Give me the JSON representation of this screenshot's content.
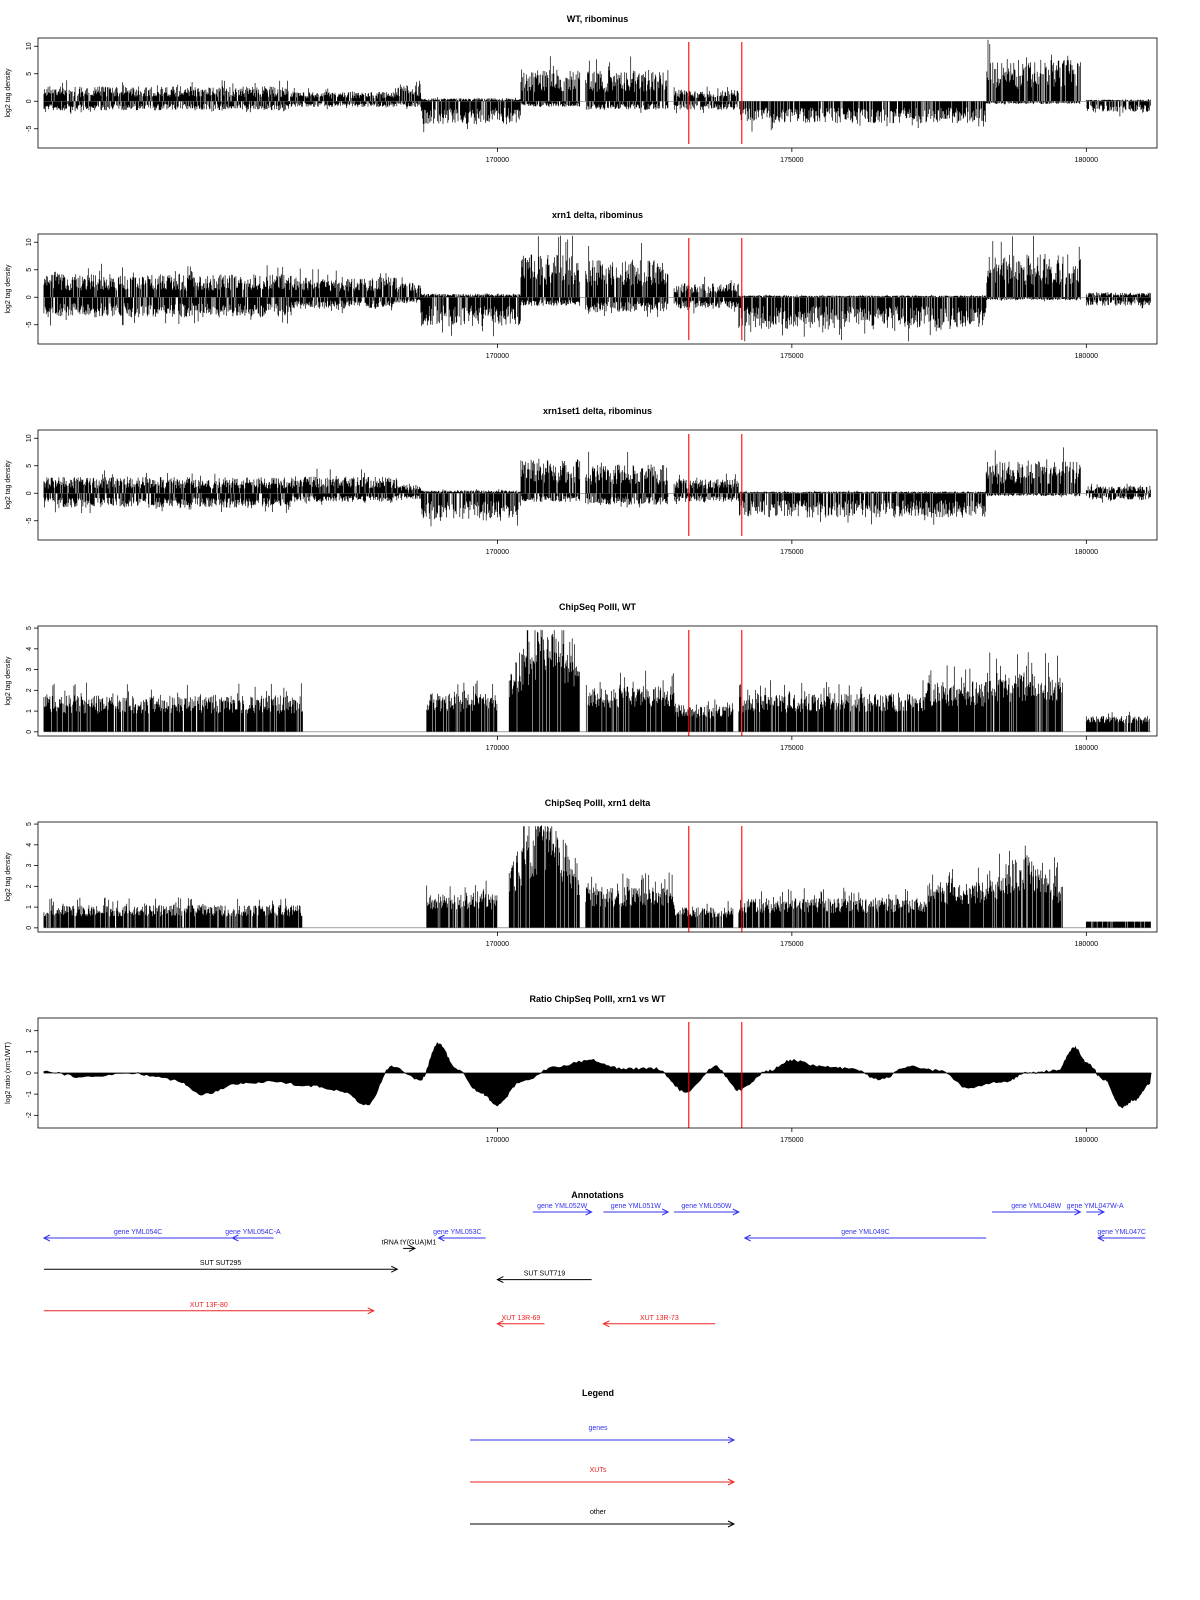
{
  "chart_data": [
    {
      "type": "bar",
      "title": "WT, ribominus",
      "xlabel": "",
      "ylabel": "log2 tag density",
      "xlim": [
        162200,
        181200
      ],
      "ylim": [
        -8.5,
        11.5
      ],
      "yticks": [
        -5,
        0,
        5,
        10
      ],
      "xticks": [
        170000,
        175000,
        180000
      ],
      "markers": [
        173250,
        174150
      ],
      "profile": "ribo",
      "seed": 11,
      "amp": 1.0,
      "noise": 0.9,
      "segments": [
        {
          "start": 162300,
          "end": 166500,
          "top": 2.6,
          "bottom": -1.6
        },
        {
          "start": 166500,
          "end": 168300,
          "top": 1.6,
          "bottom": -1.0
        },
        {
          "start": 168300,
          "end": 168700,
          "top": 3.0,
          "bottom": -1.0
        },
        {
          "start": 168700,
          "end": 170400,
          "top": 0.5,
          "bottom": -4.0
        },
        {
          "start": 170400,
          "end": 171400,
          "top": 5.5,
          "bottom": -1.0
        },
        {
          "start": 171500,
          "end": 172900,
          "top": 5.5,
          "bottom": -1.5
        },
        {
          "start": 173000,
          "end": 174100,
          "top": 2.0,
          "bottom": -1.5
        },
        {
          "start": 174100,
          "end": 178300,
          "top": 0.2,
          "bottom": -3.8
        },
        {
          "start": 178300,
          "end": 179900,
          "top": 7.5,
          "bottom": -0.5
        },
        {
          "start": 180000,
          "end": 181100,
          "top": 0.3,
          "bottom": -2.0
        }
      ]
    },
    {
      "type": "bar",
      "title": "xrn1 delta, ribominus",
      "xlabel": "",
      "ylabel": "log2 tag density",
      "xlim": [
        162200,
        181200
      ],
      "ylim": [
        -8.5,
        11.5
      ],
      "yticks": [
        -5,
        0,
        5,
        10
      ],
      "xticks": [
        170000,
        175000,
        180000
      ],
      "markers": [
        173250,
        174150
      ],
      "profile": "ribo",
      "seed": 23,
      "amp": 1.0,
      "noise": 0.9,
      "segments": [
        {
          "start": 162300,
          "end": 166500,
          "top": 4.0,
          "bottom": -3.5
        },
        {
          "start": 166500,
          "end": 168300,
          "top": 3.5,
          "bottom": -2.0
        },
        {
          "start": 168300,
          "end": 168700,
          "top": 2.5,
          "bottom": -1.0
        },
        {
          "start": 168700,
          "end": 170400,
          "top": 0.6,
          "bottom": -5.0
        },
        {
          "start": 170400,
          "end": 171400,
          "top": 7.5,
          "bottom": -1.5
        },
        {
          "start": 171500,
          "end": 172900,
          "top": 6.5,
          "bottom": -2.5
        },
        {
          "start": 173000,
          "end": 174100,
          "top": 2.5,
          "bottom": -2.0
        },
        {
          "start": 174100,
          "end": 178300,
          "top": 0.3,
          "bottom": -5.5
        },
        {
          "start": 178300,
          "end": 179900,
          "top": 7.5,
          "bottom": -0.5
        },
        {
          "start": 180000,
          "end": 181100,
          "top": 0.8,
          "bottom": -1.5
        }
      ]
    },
    {
      "type": "bar",
      "title": "xrn1set1 delta, ribominus",
      "xlabel": "",
      "ylabel": "log2 tag density",
      "xlim": [
        162200,
        181200
      ],
      "ylim": [
        -8.5,
        11.5
      ],
      "yticks": [
        -5,
        0,
        5,
        10
      ],
      "xticks": [
        170000,
        175000,
        180000
      ],
      "markers": [
        173250,
        174150
      ],
      "profile": "ribo",
      "seed": 37,
      "amp": 1.0,
      "noise": 0.9,
      "segments": [
        {
          "start": 162300,
          "end": 166500,
          "top": 2.8,
          "bottom": -2.5
        },
        {
          "start": 166500,
          "end": 168300,
          "top": 3.0,
          "bottom": -1.5
        },
        {
          "start": 168300,
          "end": 168700,
          "top": 1.5,
          "bottom": -1.0
        },
        {
          "start": 168700,
          "end": 170400,
          "top": 0.5,
          "bottom": -4.5
        },
        {
          "start": 170400,
          "end": 171400,
          "top": 6.0,
          "bottom": -1.5
        },
        {
          "start": 171500,
          "end": 172900,
          "top": 5.0,
          "bottom": -2.0
        },
        {
          "start": 173000,
          "end": 174100,
          "top": 2.5,
          "bottom": -1.5
        },
        {
          "start": 174100,
          "end": 178300,
          "top": 0.3,
          "bottom": -4.2
        },
        {
          "start": 178300,
          "end": 179900,
          "top": 5.5,
          "bottom": -0.5
        },
        {
          "start": 180000,
          "end": 181100,
          "top": 1.2,
          "bottom": -1.2
        }
      ]
    },
    {
      "type": "bar",
      "title": "ChipSeq PolII, WT",
      "xlabel": "",
      "ylabel": "log2 tag density",
      "xlim": [
        162200,
        181200
      ],
      "ylim": [
        -0.2,
        5.1
      ],
      "yticks": [
        0,
        1,
        2,
        3,
        4,
        5
      ],
      "xticks": [
        170000,
        175000,
        180000
      ],
      "markers": [
        173250,
        174150
      ],
      "profile": "chip",
      "seed": 51,
      "amp": 1.0,
      "noise": 0.8,
      "segments": [
        {
          "start": 162300,
          "end": 166700,
          "top": 1.6
        },
        {
          "start": 168800,
          "end": 170000,
          "top": 1.7
        },
        {
          "start": 170200,
          "end": 171400,
          "top": 4.2,
          "hump": true
        },
        {
          "start": 171500,
          "end": 173000,
          "top": 2.0
        },
        {
          "start": 173000,
          "end": 174000,
          "top": 1.2
        },
        {
          "start": 174100,
          "end": 177300,
          "top": 1.7
        },
        {
          "start": 177300,
          "end": 178300,
          "top": 2.2
        },
        {
          "start": 178300,
          "end": 179600,
          "top": 2.6
        },
        {
          "start": 180000,
          "end": 181100,
          "top": 0.7
        }
      ]
    },
    {
      "type": "bar",
      "title": "ChipSeq PolII, xrn1 delta",
      "xlabel": "",
      "ylabel": "log2 tag density",
      "xlim": [
        162200,
        181200
      ],
      "ylim": [
        -0.2,
        5.1
      ],
      "yticks": [
        0,
        1,
        2,
        3,
        4,
        5
      ],
      "xticks": [
        170000,
        175000,
        180000
      ],
      "markers": [
        173250,
        174150
      ],
      "profile": "chip",
      "seed": 67,
      "amp": 1.0,
      "noise": 0.8,
      "segments": [
        {
          "start": 162300,
          "end": 166700,
          "top": 1.0
        },
        {
          "start": 168800,
          "end": 170000,
          "top": 1.6
        },
        {
          "start": 170200,
          "end": 171400,
          "top": 4.3,
          "hump": true
        },
        {
          "start": 171500,
          "end": 173000,
          "top": 1.8
        },
        {
          "start": 173000,
          "end": 174000,
          "top": 0.9
        },
        {
          "start": 174100,
          "end": 177300,
          "top": 1.3
        },
        {
          "start": 177300,
          "end": 178300,
          "top": 2.0
        },
        {
          "start": 178300,
          "end": 179600,
          "top": 2.9,
          "hump": true
        },
        {
          "start": 180000,
          "end": 181100,
          "top": 0.2
        }
      ]
    },
    {
      "type": "area",
      "title": "Ratio ChipSeq PolII, xrn1 vs WT",
      "xlabel": "",
      "ylabel": "log2 ratio (xrn1/WT)",
      "xlim": [
        162200,
        181200
      ],
      "ylim": [
        -2.6,
        2.6
      ],
      "yticks": [
        -2,
        -1,
        0,
        1,
        2
      ],
      "xticks": [
        170000,
        175000,
        180000
      ],
      "markers": [
        173250,
        174150
      ],
      "profile": "ratio",
      "x": [
        162300,
        163000,
        163800,
        164500,
        165000,
        165600,
        166200,
        166800,
        167300,
        167800,
        168200,
        168700,
        169000,
        169300,
        169700,
        170000,
        170400,
        171000,
        171600,
        172100,
        172700,
        173200,
        173700,
        174100,
        174600,
        175000,
        175500,
        176000,
        176500,
        177000,
        177500,
        178000,
        178600,
        179000,
        179500,
        179800,
        180000,
        180300,
        180600,
        180800,
        181100
      ],
      "y": [
        0.1,
        -0.2,
        0.0,
        -0.3,
        -1.0,
        -0.5,
        -0.4,
        -0.6,
        -0.8,
        -1.5,
        0.3,
        -0.3,
        1.4,
        0.2,
        -0.9,
        -1.5,
        -0.4,
        0.3,
        0.6,
        0.2,
        0.2,
        -0.9,
        0.3,
        -0.8,
        0.1,
        0.6,
        0.3,
        0.2,
        -0.3,
        0.3,
        0.1,
        -0.7,
        -0.4,
        0.0,
        0.1,
        1.2,
        0.5,
        -0.3,
        -1.6,
        -1.3,
        -0.5
      ]
    }
  ],
  "annotations": {
    "title": "Annotations",
    "xlim": [
      162200,
      181200
    ],
    "features": [
      {
        "label": "gene YML054C",
        "start": 162300,
        "end": 165500,
        "dir": "left",
        "color": "#3333ee",
        "row": 0,
        "labelPos": 0.5
      },
      {
        "label": "gene YML054C-A",
        "start": 165500,
        "end": 166200,
        "dir": "left",
        "color": "#3333ee",
        "row": 0,
        "labelPos": 0.5
      },
      {
        "label": "gene YML053C",
        "start": 169000,
        "end": 169800,
        "dir": "left",
        "color": "#3333ee",
        "row": 0,
        "labelPos": 0.4
      },
      {
        "label": "gene YML052W",
        "start": 170600,
        "end": 171600,
        "dir": "right",
        "color": "#3333ee",
        "row": -1,
        "labelPos": 0.5
      },
      {
        "label": "gene YML051W",
        "start": 171800,
        "end": 172900,
        "dir": "right",
        "color": "#3333ee",
        "row": -1,
        "labelPos": 0.5
      },
      {
        "label": "gene YML050W",
        "start": 173000,
        "end": 174100,
        "dir": "right",
        "color": "#3333ee",
        "row": -1,
        "labelPos": 0.5
      },
      {
        "label": "gene YML049C",
        "start": 174200,
        "end": 178300,
        "dir": "left",
        "color": "#3333ee",
        "row": 0,
        "labelPos": 0.5
      },
      {
        "label": "gene YML048W",
        "start": 178400,
        "end": 179900,
        "dir": "right",
        "color": "#3333ee",
        "row": -1,
        "labelPos": 0.5
      },
      {
        "label": "gene YML047W-A",
        "start": 180000,
        "end": 180300,
        "dir": "right",
        "color": "#3333ee",
        "row": -1,
        "labelPos": 0.5
      },
      {
        "label": "gene YML047C",
        "start": 180200,
        "end": 181000,
        "dir": "left",
        "color": "#3333ee",
        "row": 0,
        "labelPos": 0.5
      },
      {
        "label": "tRNA tY(GUA)M1",
        "start": 168400,
        "end": 168600,
        "dir": "right",
        "color": "#000000",
        "row": 0.4,
        "labelPos": 0.5
      },
      {
        "label": "SUT SUT295",
        "start": 162300,
        "end": 168300,
        "dir": "right",
        "color": "#000000",
        "row": 1.2,
        "labelPos": 0.5
      },
      {
        "label": "SUT SUT719",
        "start": 170000,
        "end": 171600,
        "dir": "left",
        "color": "#000000",
        "row": 1.6,
        "labelPos": 0.5
      },
      {
        "label": "XUT 13F-80",
        "start": 162300,
        "end": 167900,
        "dir": "right",
        "color": "#ee2222",
        "row": 2.8,
        "labelPos": 0.5
      },
      {
        "label": "XUT 13R-69",
        "start": 170000,
        "end": 170800,
        "dir": "left",
        "color": "#ee2222",
        "row": 3.3,
        "labelPos": 0.5
      },
      {
        "label": "XUT 13R-73",
        "start": 171800,
        "end": 173700,
        "dir": "left",
        "color": "#ee2222",
        "row": 3.3,
        "labelPos": 0.5
      }
    ]
  },
  "legend": {
    "title": "Legend",
    "items": [
      {
        "label": "genes",
        "color": "#3333ee"
      },
      {
        "label": "XUTs",
        "color": "#ee2222"
      },
      {
        "label": "other",
        "color": "#000000"
      }
    ]
  }
}
